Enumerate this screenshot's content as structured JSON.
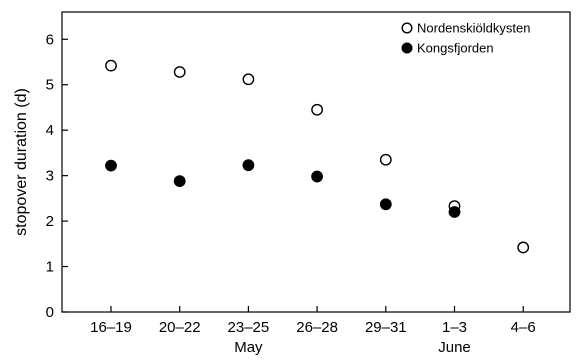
{
  "chart_data": {
    "type": "scatter",
    "categories": [
      "16–19",
      "20–22",
      "23–25",
      "26–28",
      "29–31",
      "1–3",
      "4–6"
    ],
    "month_labels": [
      {
        "text": "May",
        "category_index": 2
      },
      {
        "text": "June",
        "category_index": 5
      }
    ],
    "ylabel": "stopover duration (d)",
    "xlabel": "",
    "ylim": [
      0,
      6.6
    ],
    "yticks": [
      0,
      1,
      2,
      3,
      4,
      5,
      6
    ],
    "legend_position": "top-right",
    "series": [
      {
        "name": "Nordenskiöldkysten",
        "marker": "open-circle",
        "values": [
          5.42,
          5.28,
          5.12,
          4.45,
          3.35,
          2.33,
          1.42
        ]
      },
      {
        "name": "Kongsfjorden",
        "marker": "filled-circle",
        "values": [
          3.22,
          2.88,
          3.23,
          2.98,
          2.37,
          2.2,
          null
        ]
      }
    ]
  }
}
